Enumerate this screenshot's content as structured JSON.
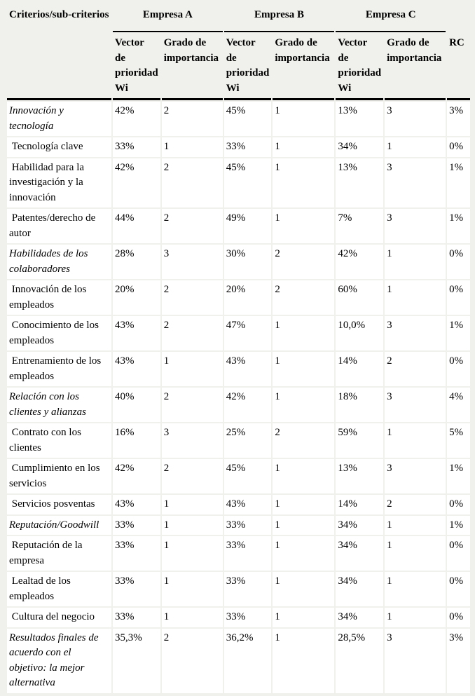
{
  "colors": {
    "page_bg": "#f0f0ec",
    "cell_bg": "#ffffff",
    "rule": "#000000",
    "text": "#000000"
  },
  "table": {
    "criteria_header": "Criterios/sub-criterios",
    "groups": [
      "Empresa A",
      "Empresa B",
      "Empresa C"
    ],
    "wi_header": "Vector\nde\nprioridad\nWi",
    "grado_header": "Grado de\nimportancia",
    "rc_header": "RC",
    "rows": [
      {
        "label": "Innovación y tecnología",
        "italic": true,
        "values": [
          "42%",
          "2",
          "45%",
          "1",
          "13%",
          "3",
          "3%"
        ]
      },
      {
        "label": " Tecnología clave",
        "italic": false,
        "values": [
          "33%",
          "1",
          "33%",
          "1",
          "34%",
          "1",
          "0%"
        ]
      },
      {
        "label": " Habilidad para la investigación y la innovación",
        "italic": false,
        "values": [
          "42%",
          "2",
          "45%",
          "1",
          "13%",
          "3",
          "1%"
        ]
      },
      {
        "label": " Patentes/derecho de autor",
        "italic": false,
        "values": [
          "44%",
          "2",
          "49%",
          "1",
          "7%",
          "3",
          "1%"
        ]
      },
      {
        "label": "Habilidades de los colaboradores",
        "italic": true,
        "values": [
          "28%",
          "3",
          "30%",
          "2",
          "42%",
          "1",
          "0%"
        ]
      },
      {
        "label": " Innovación de los empleados",
        "italic": false,
        "values": [
          "20%",
          "2",
          "20%",
          "2",
          "60%",
          "1",
          "0%"
        ]
      },
      {
        "label": " Conocimiento de los empleados",
        "italic": false,
        "values": [
          "43%",
          "2",
          "47%",
          "1",
          "10,0%",
          "3",
          "1%"
        ]
      },
      {
        "label": " Entrenamiento de los empleados",
        "italic": false,
        "values": [
          "43%",
          "1",
          "43%",
          "1",
          "14%",
          "2",
          "0%"
        ]
      },
      {
        "label": "Relación con los clientes y alianzas",
        "italic": true,
        "values": [
          "40%",
          "2",
          "42%",
          "1",
          "18%",
          "3",
          "4%"
        ]
      },
      {
        "label": " Contrato con los clientes",
        "italic": false,
        "values": [
          "16%",
          "3",
          "25%",
          "2",
          "59%",
          "1",
          "5%"
        ]
      },
      {
        "label": " Cumplimiento en los servicios",
        "italic": false,
        "values": [
          "42%",
          "2",
          "45%",
          "1",
          "13%",
          "3",
          "1%"
        ]
      },
      {
        "label": " Servicios posventas",
        "italic": false,
        "values": [
          "43%",
          "1",
          "43%",
          "1",
          "14%",
          "2",
          "0%"
        ]
      },
      {
        "label": "Reputación/Goodwill",
        "italic": true,
        "values": [
          "33%",
          "1",
          "33%",
          "1",
          "34%",
          "1",
          "1%"
        ]
      },
      {
        "label": " Reputación de la empresa",
        "italic": false,
        "values": [
          "33%",
          "1",
          "33%",
          "1",
          "34%",
          "1",
          "0%"
        ]
      },
      {
        "label": " Lealtad de los empleados",
        "italic": false,
        "values": [
          "33%",
          "1",
          "33%",
          "1",
          "34%",
          "1",
          "0%"
        ]
      },
      {
        "label": " Cultura del negocio",
        "italic": false,
        "values": [
          "33%",
          "1",
          "33%",
          "1",
          "34%",
          "1",
          "0%"
        ]
      },
      {
        "label": "Resultados finales de acuerdo con el objetivo: la mejor alternativa",
        "italic": true,
        "values": [
          "35,3%",
          "2",
          "36,2%",
          "1",
          "28,5%",
          "3",
          "3%"
        ]
      }
    ]
  }
}
